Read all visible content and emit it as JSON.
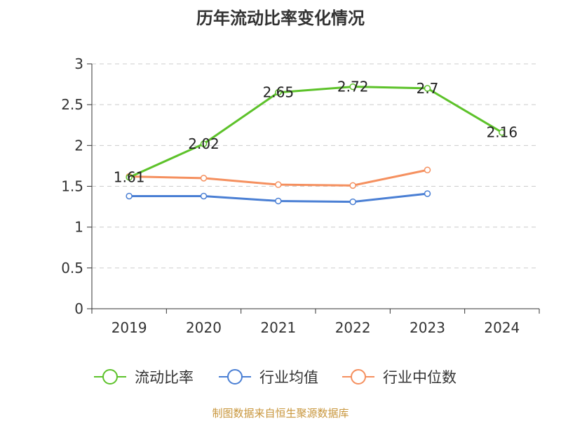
{
  "chart_data": {
    "type": "line",
    "title": "历年流动比率变化情况",
    "categories": [
      "2019",
      "2020",
      "2021",
      "2022",
      "2023",
      "2024"
    ],
    "ylim": [
      0,
      3
    ],
    "y_ticks": [
      "0",
      "0.5",
      "1",
      "1.5",
      "2",
      "2.5",
      "3"
    ],
    "grid": true,
    "legend_position": "bottom",
    "series": [
      {
        "name": "流动比率",
        "color": "#5dc22a",
        "values": [
          1.61,
          2.02,
          2.65,
          2.72,
          2.7,
          2.16
        ],
        "labels": [
          "1.61",
          "2.02",
          "2.65",
          "2.72",
          "2.7",
          "2.16"
        ]
      },
      {
        "name": "行业均值",
        "color": "#4a7fd4",
        "values": [
          1.38,
          1.38,
          1.32,
          1.31,
          1.41,
          null
        ]
      },
      {
        "name": "行业中位数",
        "color": "#f5905f",
        "values": [
          1.62,
          1.6,
          1.52,
          1.51,
          1.7,
          null
        ]
      }
    ]
  },
  "source": "制图数据来自恒生聚源数据库"
}
